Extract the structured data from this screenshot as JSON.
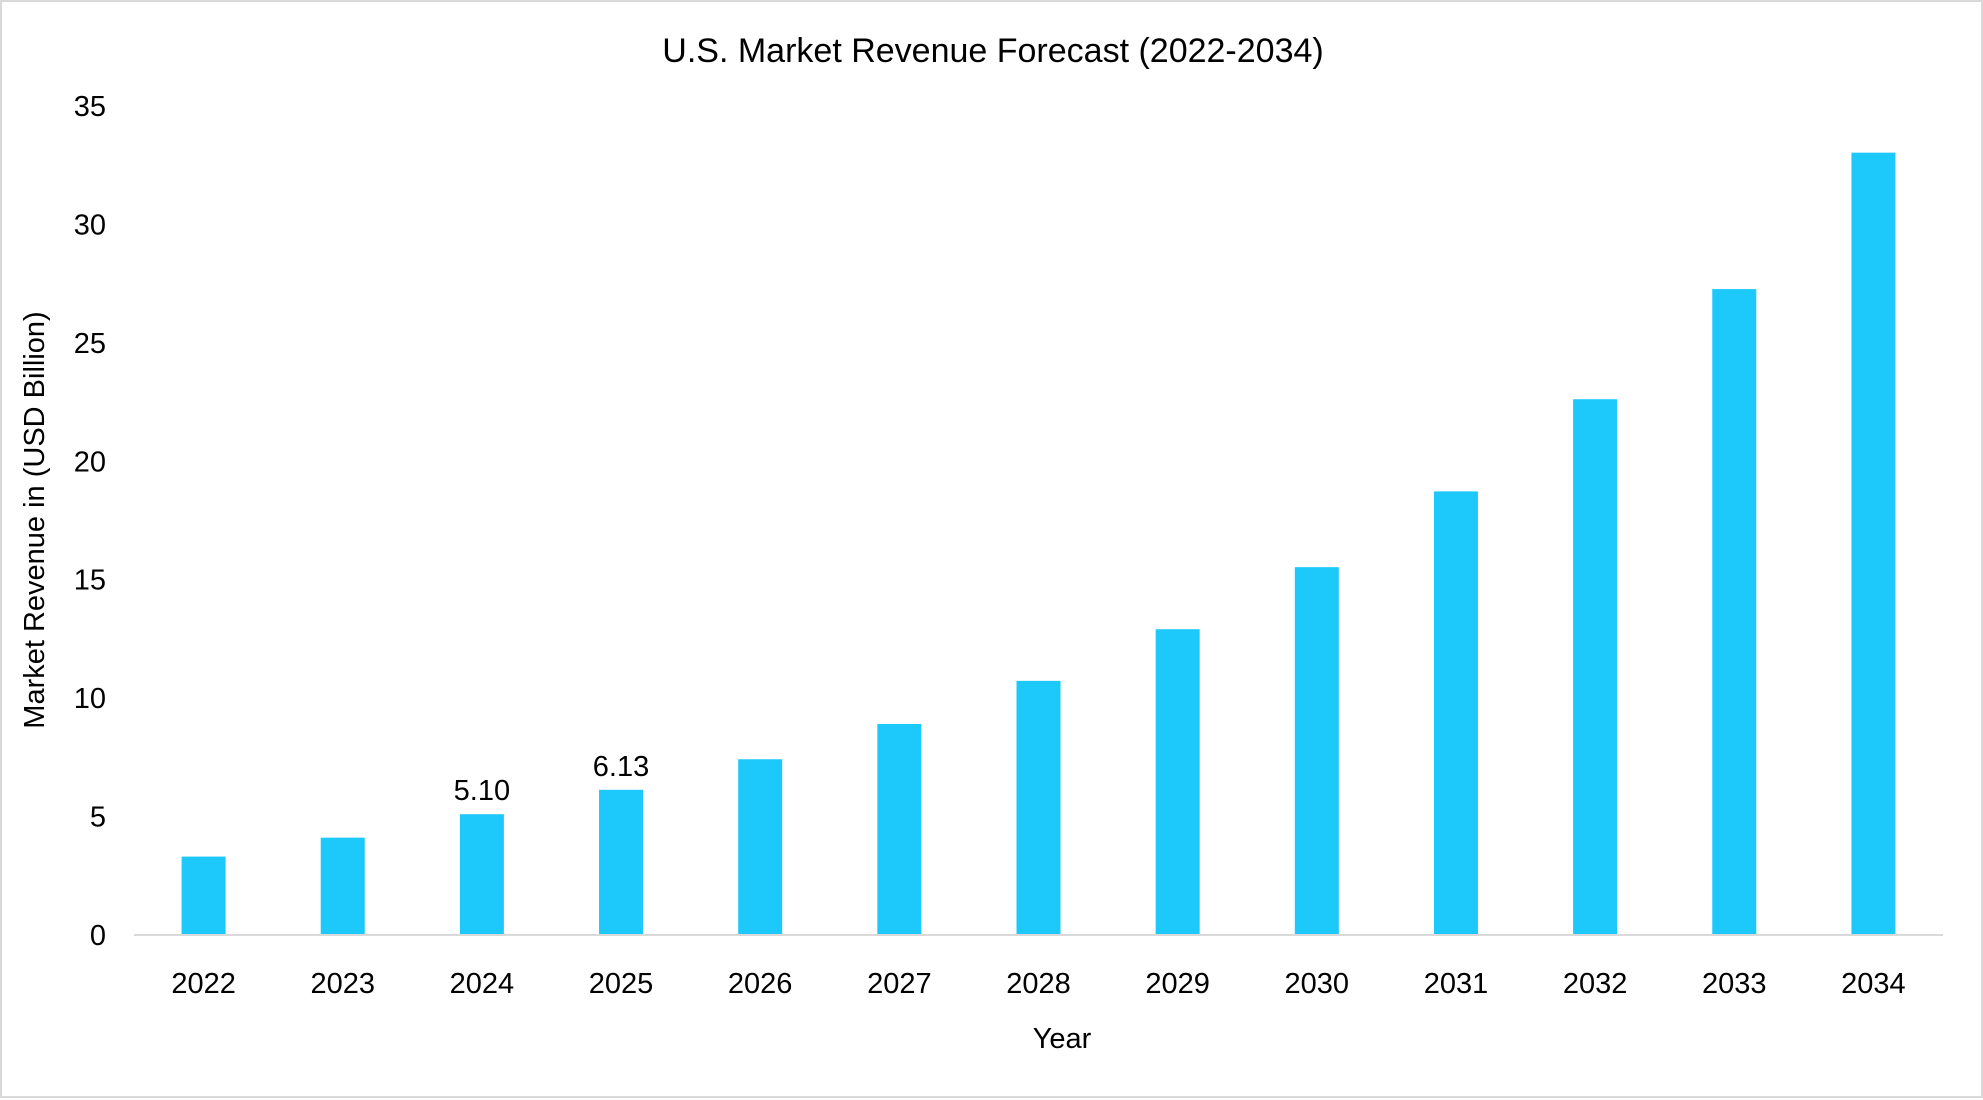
{
  "chart_data": {
    "type": "bar",
    "title": "U.S. Market Revenue Forecast (2022-2034)",
    "xlabel": "Year",
    "ylabel": "Market Revenue in (USD Billion)",
    "categories": [
      "2022",
      "2023",
      "2024",
      "2025",
      "2026",
      "2027",
      "2028",
      "2029",
      "2030",
      "2031",
      "2032",
      "2033",
      "2034"
    ],
    "values": [
      3.31,
      4.11,
      5.1,
      6.13,
      7.42,
      8.91,
      10.73,
      12.91,
      15.53,
      18.73,
      22.62,
      27.27,
      33.03
    ],
    "data_labels": [
      null,
      null,
      "5.10",
      "6.13",
      null,
      null,
      null,
      null,
      null,
      null,
      null,
      null,
      null
    ],
    "ylim": [
      0,
      35
    ],
    "yticks": [
      "0",
      "5",
      "10",
      "15",
      "20",
      "25",
      "30",
      "35"
    ],
    "grid": false,
    "legend": "none",
    "bar_color": "#1DC8FA"
  }
}
